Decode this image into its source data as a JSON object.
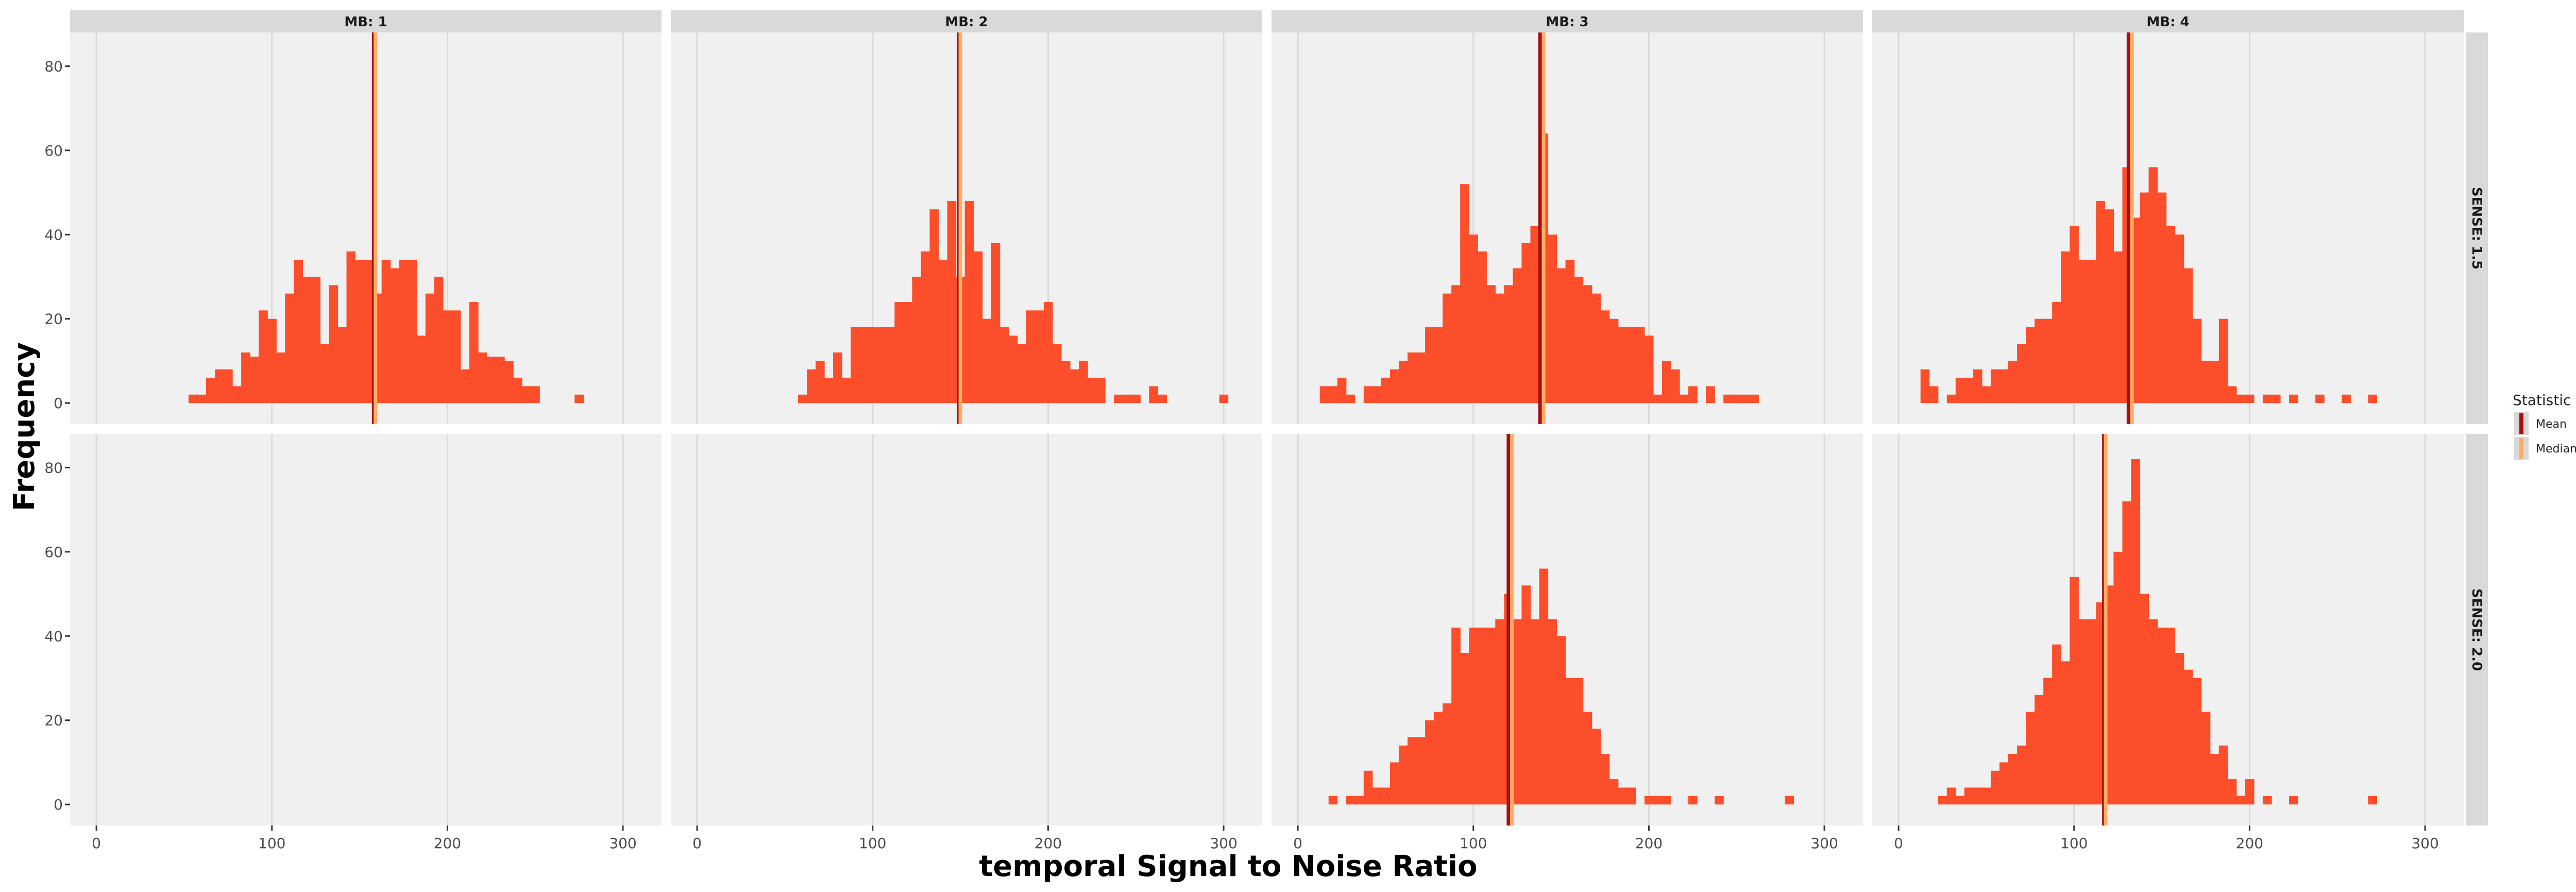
{
  "chart_data": {
    "type": "bar",
    "xlabel": "temporal Signal to Noise Ratio",
    "ylabel": "Frequency",
    "xlim": [
      -15,
      322
    ],
    "ylim": [
      -5,
      88
    ],
    "x_ticks": [
      0,
      100,
      200,
      300
    ],
    "y_ticks": [
      0,
      20,
      40,
      60,
      80
    ],
    "bin_width": 5,
    "grid": true,
    "columns": [
      "MB: 1",
      "MB: 2",
      "MB: 3",
      "MB: 4"
    ],
    "rows": [
      "SENSE: 1.5",
      "SENSE: 2.0"
    ],
    "legend": {
      "title": "Statistic",
      "position": "right",
      "items": [
        {
          "label": "Mean",
          "color": "#a50f15"
        },
        {
          "label": "Median",
          "color": "#fdae61"
        }
      ]
    },
    "colors": {
      "bar": "#fc4e2a",
      "mean": "#a50f15",
      "median": "#fdae61",
      "panel_bg": "#f0f0f0",
      "strip_bg": "#d9d9d9",
      "grid": "#d9d9d9"
    },
    "panels": [
      {
        "col": "MB: 1",
        "row": "SENSE: 1.5",
        "mean": 158,
        "median": 159,
        "bins": [
          [
            55,
            2
          ],
          [
            60,
            2
          ],
          [
            65,
            6
          ],
          [
            70,
            8
          ],
          [
            75,
            8
          ],
          [
            80,
            4
          ],
          [
            85,
            12
          ],
          [
            90,
            11
          ],
          [
            95,
            22
          ],
          [
            100,
            20
          ],
          [
            105,
            12
          ],
          [
            110,
            26
          ],
          [
            115,
            34
          ],
          [
            120,
            30
          ],
          [
            125,
            30
          ],
          [
            130,
            14
          ],
          [
            135,
            28
          ],
          [
            140,
            18
          ],
          [
            145,
            36
          ],
          [
            150,
            34
          ],
          [
            155,
            34
          ],
          [
            160,
            26
          ],
          [
            165,
            34
          ],
          [
            170,
            32
          ],
          [
            175,
            34
          ],
          [
            180,
            34
          ],
          [
            185,
            16
          ],
          [
            190,
            26
          ],
          [
            195,
            30
          ],
          [
            200,
            22
          ],
          [
            205,
            22
          ],
          [
            210,
            8
          ],
          [
            215,
            24
          ],
          [
            220,
            12
          ],
          [
            225,
            11
          ],
          [
            230,
            11
          ],
          [
            235,
            10
          ],
          [
            240,
            6
          ],
          [
            245,
            4
          ],
          [
            250,
            4
          ],
          [
            275,
            2
          ]
        ]
      },
      {
        "col": "MB: 2",
        "row": "SENSE: 1.5",
        "mean": 149,
        "median": 150,
        "bins": [
          [
            60,
            2
          ],
          [
            65,
            8
          ],
          [
            70,
            10
          ],
          [
            75,
            6
          ],
          [
            80,
            12
          ],
          [
            85,
            6
          ],
          [
            90,
            18
          ],
          [
            95,
            18
          ],
          [
            100,
            18
          ],
          [
            105,
            18
          ],
          [
            110,
            18
          ],
          [
            115,
            24
          ],
          [
            120,
            24
          ],
          [
            125,
            30
          ],
          [
            130,
            36
          ],
          [
            135,
            46
          ],
          [
            140,
            34
          ],
          [
            145,
            48
          ],
          [
            150,
            30
          ],
          [
            155,
            48
          ],
          [
            160,
            36
          ],
          [
            165,
            20
          ],
          [
            170,
            38
          ],
          [
            175,
            18
          ],
          [
            180,
            16
          ],
          [
            185,
            14
          ],
          [
            190,
            22
          ],
          [
            195,
            22
          ],
          [
            200,
            24
          ],
          [
            205,
            14
          ],
          [
            210,
            10
          ],
          [
            215,
            8
          ],
          [
            220,
            10
          ],
          [
            225,
            6
          ],
          [
            230,
            6
          ],
          [
            240,
            2
          ],
          [
            245,
            2
          ],
          [
            250,
            2
          ],
          [
            260,
            4
          ],
          [
            265,
            2
          ],
          [
            300,
            2
          ]
        ]
      },
      {
        "col": "MB: 3",
        "row": "SENSE: 1.5",
        "mean": 138,
        "median": 140,
        "bins": [
          [
            15,
            4
          ],
          [
            20,
            4
          ],
          [
            25,
            6
          ],
          [
            30,
            2
          ],
          [
            40,
            4
          ],
          [
            45,
            4
          ],
          [
            50,
            6
          ],
          [
            55,
            8
          ],
          [
            60,
            10
          ],
          [
            65,
            12
          ],
          [
            70,
            12
          ],
          [
            75,
            18
          ],
          [
            80,
            18
          ],
          [
            85,
            26
          ],
          [
            90,
            28
          ],
          [
            95,
            52
          ],
          [
            100,
            40
          ],
          [
            105,
            36
          ],
          [
            110,
            28
          ],
          [
            115,
            26
          ],
          [
            120,
            28
          ],
          [
            125,
            32
          ],
          [
            130,
            38
          ],
          [
            135,
            42
          ],
          [
            140,
            64
          ],
          [
            145,
            40
          ],
          [
            150,
            32
          ],
          [
            155,
            34
          ],
          [
            160,
            30
          ],
          [
            165,
            28
          ],
          [
            170,
            26
          ],
          [
            175,
            22
          ],
          [
            180,
            20
          ],
          [
            185,
            18
          ],
          [
            190,
            18
          ],
          [
            195,
            18
          ],
          [
            200,
            16
          ],
          [
            205,
            2
          ],
          [
            210,
            10
          ],
          [
            215,
            8
          ],
          [
            220,
            2
          ],
          [
            225,
            4
          ],
          [
            235,
            4
          ],
          [
            245,
            2
          ],
          [
            250,
            2
          ],
          [
            255,
            2
          ],
          [
            260,
            2
          ]
        ]
      },
      {
        "col": "MB: 4",
        "row": "SENSE: 1.5",
        "mean": 131,
        "median": 133,
        "bins": [
          [
            15,
            8
          ],
          [
            20,
            4
          ],
          [
            30,
            2
          ],
          [
            35,
            6
          ],
          [
            40,
            6
          ],
          [
            45,
            8
          ],
          [
            50,
            4
          ],
          [
            55,
            8
          ],
          [
            60,
            8
          ],
          [
            65,
            10
          ],
          [
            70,
            14
          ],
          [
            75,
            18
          ],
          [
            80,
            20
          ],
          [
            85,
            20
          ],
          [
            90,
            24
          ],
          [
            95,
            36
          ],
          [
            100,
            42
          ],
          [
            105,
            34
          ],
          [
            110,
            34
          ],
          [
            115,
            48
          ],
          [
            120,
            46
          ],
          [
            125,
            36
          ],
          [
            130,
            56
          ],
          [
            135,
            44
          ],
          [
            140,
            50
          ],
          [
            145,
            56
          ],
          [
            150,
            50
          ],
          [
            155,
            42
          ],
          [
            160,
            40
          ],
          [
            165,
            32
          ],
          [
            170,
            20
          ],
          [
            175,
            10
          ],
          [
            180,
            10
          ],
          [
            185,
            20
          ],
          [
            190,
            4
          ],
          [
            195,
            2
          ],
          [
            200,
            2
          ],
          [
            210,
            2
          ],
          [
            215,
            2
          ],
          [
            225,
            2
          ],
          [
            240,
            2
          ],
          [
            255,
            2
          ],
          [
            270,
            2
          ]
        ]
      },
      {
        "col": "MB: 1",
        "row": "SENSE: 2.0",
        "mean": null,
        "median": null,
        "bins": []
      },
      {
        "col": "MB: 2",
        "row": "SENSE: 2.0",
        "mean": null,
        "median": null,
        "bins": []
      },
      {
        "col": "MB: 3",
        "row": "SENSE: 2.0",
        "mean": 120,
        "median": 122,
        "bins": [
          [
            20,
            2
          ],
          [
            30,
            2
          ],
          [
            35,
            2
          ],
          [
            40,
            8
          ],
          [
            45,
            4
          ],
          [
            50,
            4
          ],
          [
            55,
            10
          ],
          [
            60,
            14
          ],
          [
            65,
            16
          ],
          [
            70,
            16
          ],
          [
            75,
            20
          ],
          [
            80,
            22
          ],
          [
            85,
            24
          ],
          [
            90,
            42
          ],
          [
            95,
            36
          ],
          [
            100,
            42
          ],
          [
            105,
            42
          ],
          [
            110,
            42
          ],
          [
            115,
            44
          ],
          [
            120,
            50
          ],
          [
            125,
            44
          ],
          [
            130,
            52
          ],
          [
            135,
            44
          ],
          [
            140,
            56
          ],
          [
            145,
            44
          ],
          [
            150,
            40
          ],
          [
            155,
            30
          ],
          [
            160,
            30
          ],
          [
            165,
            22
          ],
          [
            170,
            18
          ],
          [
            175,
            12
          ],
          [
            180,
            6
          ],
          [
            185,
            4
          ],
          [
            190,
            4
          ],
          [
            200,
            2
          ],
          [
            205,
            2
          ],
          [
            210,
            2
          ],
          [
            225,
            2
          ],
          [
            240,
            2
          ],
          [
            280,
            2
          ]
        ]
      },
      {
        "col": "MB: 4",
        "row": "SENSE: 2.0",
        "mean": 117,
        "median": 118,
        "bins": [
          [
            25,
            2
          ],
          [
            30,
            4
          ],
          [
            35,
            2
          ],
          [
            40,
            4
          ],
          [
            45,
            4
          ],
          [
            50,
            4
          ],
          [
            55,
            8
          ],
          [
            60,
            10
          ],
          [
            65,
            12
          ],
          [
            70,
            14
          ],
          [
            75,
            22
          ],
          [
            80,
            26
          ],
          [
            85,
            30
          ],
          [
            90,
            38
          ],
          [
            95,
            34
          ],
          [
            100,
            54
          ],
          [
            105,
            44
          ],
          [
            110,
            44
          ],
          [
            115,
            48
          ],
          [
            120,
            52
          ],
          [
            125,
            60
          ],
          [
            130,
            72
          ],
          [
            135,
            82
          ],
          [
            140,
            50
          ],
          [
            145,
            44
          ],
          [
            150,
            42
          ],
          [
            155,
            42
          ],
          [
            160,
            36
          ],
          [
            165,
            32
          ],
          [
            170,
            30
          ],
          [
            175,
            22
          ],
          [
            180,
            12
          ],
          [
            185,
            14
          ],
          [
            190,
            6
          ],
          [
            195,
            2
          ],
          [
            200,
            6
          ],
          [
            210,
            2
          ],
          [
            225,
            2
          ],
          [
            270,
            2
          ]
        ]
      }
    ]
  }
}
